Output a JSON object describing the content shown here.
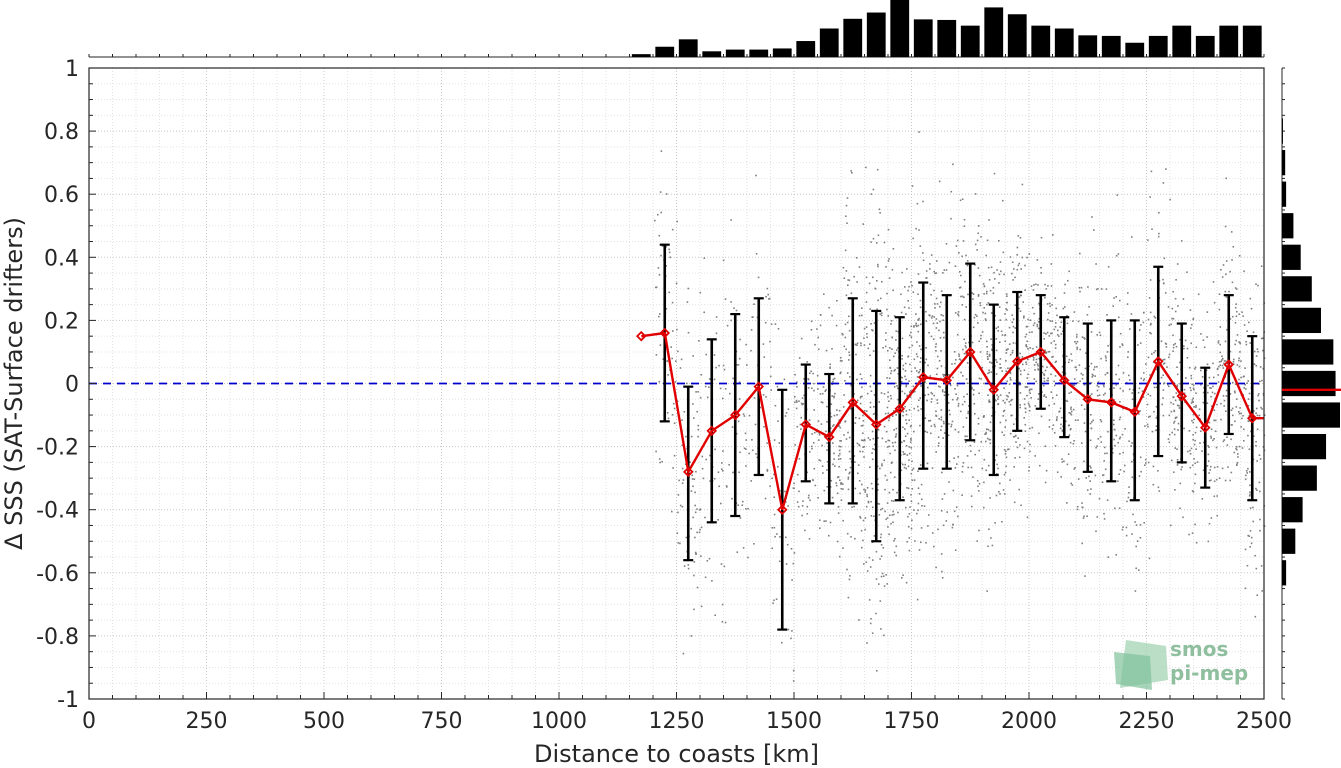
{
  "chart_data": {
    "type": "line",
    "xlabel": "Distance to coasts [km]",
    "ylabel": "Δ SSS (SAT-Surface drifters)",
    "xlim": [
      0,
      2500
    ],
    "ylim": [
      -1,
      1
    ],
    "xticks": [
      "0",
      "250",
      "500",
      "750",
      "1000",
      "1250",
      "1500",
      "1750",
      "2000",
      "2250",
      "2500"
    ],
    "yticks": [
      "-1",
      "-0.8",
      "-0.6",
      "-0.4",
      "-0.2",
      "0",
      "0.2",
      "0.4",
      "0.6",
      "0.8",
      "1"
    ],
    "grid": true,
    "reference_line": {
      "y": 0,
      "style": "dashed",
      "color": "#0000cc"
    },
    "series": [
      {
        "kind": "mean_with_std",
        "color": "#e00000",
        "x": [
          1175,
          1225,
          1275,
          1325,
          1375,
          1425,
          1475,
          1525,
          1575,
          1625,
          1675,
          1725,
          1775,
          1825,
          1875,
          1925,
          1975,
          2025,
          2075,
          2125,
          2175,
          2225,
          2275,
          2325,
          2375,
          2425,
          2475,
          2500
        ],
        "y": [
          0.15,
          0.16,
          -0.28,
          -0.15,
          -0.1,
          -0.01,
          -0.4,
          -0.13,
          -0.17,
          -0.06,
          -0.13,
          -0.08,
          0.02,
          0.01,
          0.1,
          -0.02,
          0.07,
          0.1,
          0.01,
          -0.05,
          -0.06,
          -0.09,
          0.07,
          -0.04,
          -0.14,
          0.06,
          -0.11,
          -0.11
        ],
        "err_low": [
          null,
          -0.12,
          -0.56,
          -0.44,
          -0.42,
          -0.29,
          -0.78,
          -0.31,
          -0.38,
          -0.38,
          -0.5,
          -0.37,
          -0.27,
          -0.27,
          -0.18,
          -0.29,
          -0.15,
          -0.08,
          -0.17,
          -0.28,
          -0.31,
          -0.37,
          -0.23,
          -0.25,
          -0.33,
          -0.16,
          -0.37,
          null
        ],
        "err_high": [
          null,
          0.44,
          -0.01,
          0.14,
          0.22,
          0.27,
          -0.02,
          0.06,
          0.03,
          0.27,
          0.23,
          0.21,
          0.32,
          0.28,
          0.38,
          0.25,
          0.29,
          0.28,
          0.21,
          0.19,
          0.2,
          0.2,
          0.37,
          0.19,
          0.05,
          0.28,
          0.15,
          null
        ]
      }
    ],
    "scatter_color": "#808080",
    "scatter_note": "dense gray points, drifter colocations, x ≈ 1200–2500, y ≈ -0.9–0.9",
    "top_histogram": {
      "bins": [
        1175,
        1225,
        1275,
        1325,
        1375,
        1425,
        1475,
        1525,
        1575,
        1625,
        1675,
        1725,
        1775,
        1825,
        1875,
        1925,
        1975,
        2025,
        2075,
        2125,
        2175,
        2225,
        2275,
        2325,
        2375,
        2425,
        2475
      ],
      "heights": [
        0.05,
        0.18,
        0.31,
        0.1,
        0.13,
        0.13,
        0.15,
        0.28,
        0.5,
        0.67,
        0.78,
        1.0,
        0.66,
        0.65,
        0.55,
        0.87,
        0.75,
        0.55,
        0.5,
        0.38,
        0.37,
        0.25,
        0.37,
        0.55,
        0.37,
        0.55,
        0.55
      ]
    },
    "right_histogram": {
      "bin_centers": [
        0.8,
        0.7,
        0.6,
        0.5,
        0.4,
        0.3,
        0.2,
        0.1,
        0.0,
        -0.1,
        -0.2,
        -0.3,
        -0.4,
        -0.5,
        -0.6
      ],
      "widths": [
        0.03,
        0.1,
        0.13,
        0.36,
        0.59,
        0.94,
        1.23,
        1.62,
        1.69,
        1.83,
        1.39,
        1.1,
        0.65,
        0.42,
        0.13
      ],
      "median_marker_y": -0.02
    }
  },
  "logo": {
    "line1": "smos",
    "line2": "pi-mep"
  }
}
